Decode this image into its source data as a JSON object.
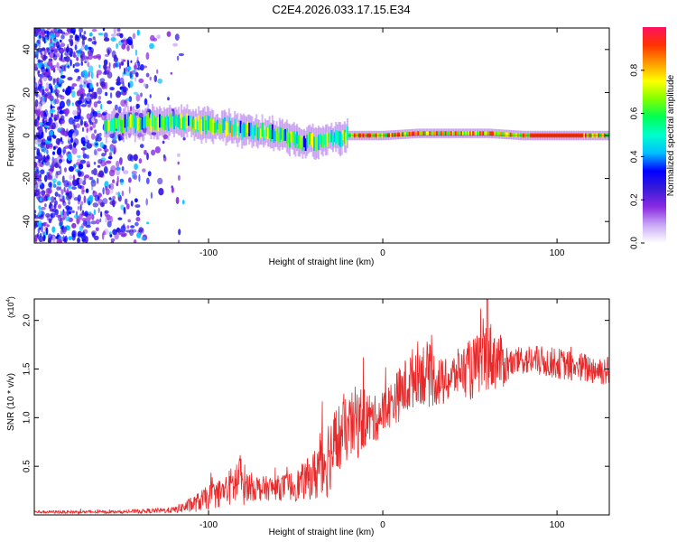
{
  "figure_title": "C2E4.2026.033.17.15.E34",
  "chart_data": [
    {
      "type": "heatmap",
      "xlabel": "Height of straight line (km)",
      "ylabel": "Frequency (Hz)",
      "xlim": [
        -200,
        130
      ],
      "ylim": [
        -50,
        50
      ],
      "x_ticks": [
        -100,
        0,
        100
      ],
      "x_tick_labels": [
        "-100",
        "0",
        "100"
      ],
      "y_ticks": [
        -40,
        -20,
        0,
        20,
        40
      ],
      "y_tick_labels": [
        "-40",
        "-20",
        "0",
        "20",
        "40"
      ],
      "colorbar": {
        "label": "Normalized spectral amplitude",
        "range": [
          0,
          1
        ],
        "ticks": [
          0.0,
          0.2,
          0.4,
          0.6,
          0.8
        ],
        "tick_labels": [
          "0.0",
          "0.2",
          "0.4",
          "0.6",
          "0.8"
        ],
        "colors": [
          "#ffffff",
          "#c9a9f5",
          "#8a2be2",
          "#3a1bd8",
          "#0000ff",
          "#00bfff",
          "#00ffcc",
          "#00ff55",
          "#7fff00",
          "#ffff00",
          "#ff9900",
          "#ff3300",
          "#ff1060"
        ]
      },
      "description_series": [
        {
          "name": "noise_region",
          "x_range": [
            -200,
            -115
          ],
          "freq_range": [
            -50,
            50
          ]
        },
        {
          "name": "signal_band",
          "x": [
            -160,
            -140,
            -120,
            -100,
            -80,
            -60,
            -45,
            -35,
            -20,
            0,
            20,
            40,
            60,
            80,
            100,
            130
          ],
          "center_freq": [
            5,
            6,
            7,
            5,
            3,
            0,
            -3,
            -2,
            0,
            0,
            1,
            1,
            1,
            0,
            0,
            0
          ]
        }
      ]
    },
    {
      "type": "line",
      "xlabel": "Height of straight line (km)",
      "ylabel": "SNR (10 * v/v)",
      "y_multiplier_label": "(x10",
      "y_multiplier_exp": "4",
      "y_multiplier_close": ")",
      "xlim": [
        -200,
        130
      ],
      "ylim": [
        0,
        2.22
      ],
      "x_ticks": [
        -100,
        0,
        100
      ],
      "x_tick_labels": [
        "-100",
        "0",
        "100"
      ],
      "y_ticks": [
        0.5,
        1.0,
        1.5,
        2.0
      ],
      "y_tick_labels": [
        "0.5",
        "1.0",
        "1.5",
        "2.0"
      ],
      "series": [
        {
          "name": "SNR",
          "color": "#e8292a",
          "envelope_x": [
            -200,
            -150,
            -120,
            -110,
            -100,
            -90,
            -85,
            -82,
            -78,
            -70,
            -60,
            -50,
            -40,
            -35,
            -30,
            -25,
            -20,
            -15,
            -10,
            -5,
            0,
            5,
            10,
            15,
            20,
            25,
            30,
            35,
            40,
            45,
            50,
            55,
            60,
            65,
            70,
            75,
            80,
            90,
            100,
            110,
            120,
            130
          ],
          "envelope_mean": [
            0.03,
            0.03,
            0.05,
            0.1,
            0.18,
            0.25,
            0.32,
            0.36,
            0.3,
            0.27,
            0.28,
            0.3,
            0.4,
            0.52,
            0.65,
            0.78,
            0.88,
            0.95,
            1.0,
            0.98,
            1.05,
            1.15,
            1.25,
            1.35,
            1.48,
            1.45,
            1.4,
            1.35,
            1.42,
            1.5,
            1.48,
            1.55,
            1.65,
            1.6,
            1.55,
            1.55,
            1.6,
            1.58,
            1.56,
            1.52,
            1.5,
            1.48
          ],
          "envelope_noise": [
            0.01,
            0.01,
            0.02,
            0.05,
            0.08,
            0.1,
            0.15,
            0.2,
            0.1,
            0.08,
            0.08,
            0.1,
            0.15,
            0.3,
            0.25,
            0.25,
            0.2,
            0.25,
            0.2,
            0.15,
            0.15,
            0.15,
            0.18,
            0.2,
            0.2,
            0.22,
            0.18,
            0.15,
            0.15,
            0.15,
            0.2,
            0.2,
            0.25,
            0.2,
            0.15,
            0.08,
            0.1,
            0.1,
            0.1,
            0.1,
            0.1,
            0.1
          ],
          "peak_x": 60,
          "peak_y": 2.22
        }
      ]
    }
  ]
}
